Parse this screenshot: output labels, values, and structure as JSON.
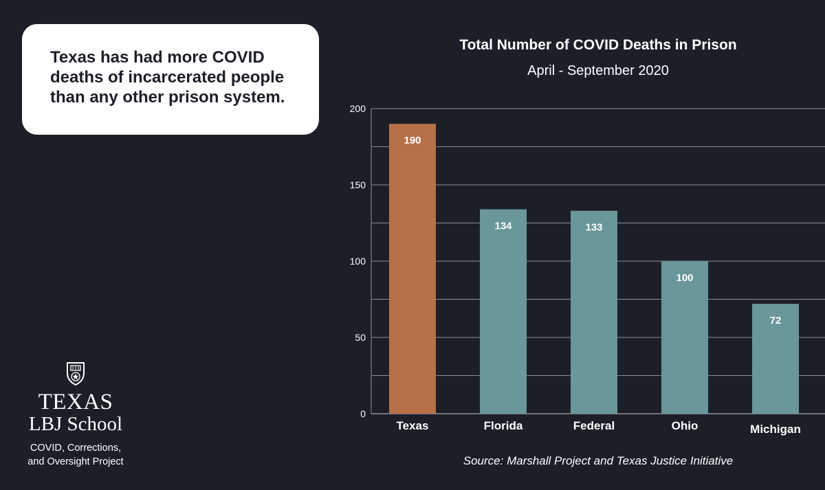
{
  "callout": {
    "line1": "Texas has had more COVID",
    "line2": "deaths of incarcerated people",
    "line3": "than any other prison system."
  },
  "chart_data": {
    "type": "bar",
    "title": "Total Number of COVID Deaths in Prison",
    "subtitle": "April - September 2020",
    "categories": [
      "Texas",
      "Florida",
      "Federal",
      "Ohio",
      "Michigan"
    ],
    "values": [
      190,
      134,
      133,
      100,
      72
    ],
    "data_labels": [
      "190",
      "134",
      "133",
      "100",
      "72"
    ],
    "highlight": "Texas",
    "ylim": [
      0,
      200
    ],
    "yticks": [
      0,
      50,
      100,
      150,
      200
    ],
    "xlabel": "",
    "ylabel": "",
    "grid": true,
    "legend": "none",
    "source": "Source: Marshall Project and Texas Justice Initiative"
  },
  "colors": {
    "background": "#1c1f27",
    "highlight_bar": "#b87049",
    "bar": "#6a9799",
    "text": "#ffffff",
    "gridline": "#8e9196"
  },
  "branding": {
    "icon": "ut-shield-icon",
    "line1": "TEXAS",
    "line2": "LBJ School",
    "project_line1": "COVID, Corrections,",
    "project_line2": "and Oversight Project"
  }
}
